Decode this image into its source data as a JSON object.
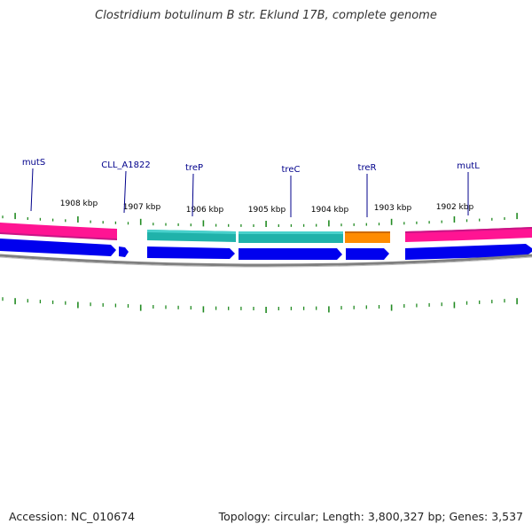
{
  "title": "Clostridium botulinum B str. Eklund 17B, complete genome",
  "footer": {
    "accession": "Accession: NC_010674",
    "summary": "Topology: circular; Length: 3,800,327 bp; Genes: 3,537"
  },
  "colors": {
    "gene_label": "#00008b",
    "scale_label": "#000000",
    "tick": "#228b22",
    "cds_pink": "#ff1493",
    "cds_teal": "#20b2aa",
    "cds_orange": "#ff8c00",
    "gene_blue": "#0000ee",
    "backbone": "#808080"
  },
  "scale_labels": [
    "1908 kbp",
    "1907 kbp",
    "1906 kbp",
    "1905 kbp",
    "1904 kbp",
    "1903 kbp",
    "1902 kbp"
  ],
  "gene_labels": [
    "mutS",
    "CLL_A1822",
    "treP",
    "treC",
    "treR",
    "mutL"
  ]
}
